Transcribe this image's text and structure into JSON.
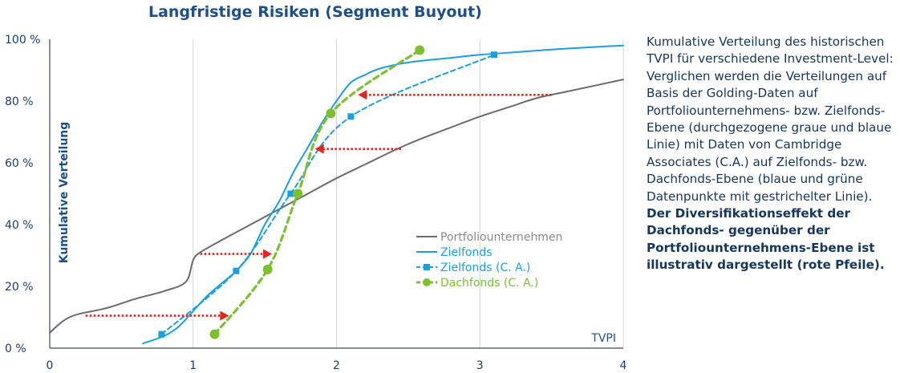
{
  "chart_data": {
    "type": "line",
    "title": "Langfristige Risiken (Segment Buyout)",
    "xlabel": "TVPI",
    "ylabel": "Kumulative Verteilung",
    "xlim": [
      0,
      4
    ],
    "ylim": [
      0,
      100
    ],
    "x_ticks": [
      "0",
      "1",
      "2",
      "3",
      "4"
    ],
    "y_ticks": [
      "0 %",
      "20 %",
      "40 %",
      "60 %",
      "80 %",
      "100 %"
    ],
    "grid": "vertical",
    "legend_position": "center-right",
    "series": [
      {
        "name": "Portfoliounternehmen",
        "style": "solid",
        "color": "#6b6b6b",
        "x": [
          0.0,
          0.1,
          0.2,
          0.4,
          0.6,
          0.8,
          0.95,
          1.0,
          1.05,
          1.2,
          1.4,
          1.6,
          1.8,
          2.0,
          2.2,
          2.4,
          2.6,
          2.8,
          3.0,
          3.2,
          3.4,
          3.6,
          3.8,
          4.0
        ],
        "y": [
          5,
          9,
          11,
          13,
          16,
          18.5,
          21.5,
          28.5,
          31,
          35,
          40,
          45,
          50,
          55,
          59.5,
          64,
          68,
          71.5,
          75,
          78,
          81,
          83,
          85,
          87
        ]
      },
      {
        "name": "Zielfonds",
        "style": "solid",
        "color": "#1a9fe0",
        "x": [
          0.65,
          0.8,
          0.9,
          1.0,
          1.1,
          1.2,
          1.3,
          1.4,
          1.5,
          1.6,
          1.7,
          1.8,
          1.9,
          2.0,
          2.1,
          2.2,
          2.3,
          2.5,
          2.8,
          3.0,
          3.3,
          3.6,
          4.0
        ],
        "y": [
          1.5,
          4,
          7,
          12,
          17,
          21,
          25,
          30.5,
          40,
          47.5,
          57,
          65,
          73,
          80,
          86,
          88.5,
          90.5,
          92.5,
          94,
          95,
          96,
          97,
          98
        ]
      },
      {
        "name": "Zielfonds (C. A.)",
        "style": "dashed-square",
        "color": "#1a9fe0",
        "x": [
          0.78,
          1.3,
          1.68,
          2.1,
          3.1
        ],
        "y": [
          4.5,
          25,
          50,
          75,
          95
        ]
      },
      {
        "name": "Dachfonds (C. A.)",
        "style": "dashed-circle",
        "color": "#7cc02e",
        "x": [
          1.15,
          1.52,
          1.73,
          1.96,
          2.58
        ],
        "y": [
          4.5,
          25.5,
          50,
          76,
          96.5
        ]
      }
    ],
    "annotations": [
      {
        "type": "arrow",
        "color": "#e3241b",
        "from": [
          0.25,
          10.5
        ],
        "to": [
          1.25,
          10.5
        ]
      },
      {
        "type": "arrow",
        "color": "#e3241b",
        "from": [
          1.05,
          30.5
        ],
        "to": [
          1.55,
          30.5
        ]
      },
      {
        "type": "arrow",
        "color": "#e3241b",
        "from": [
          2.45,
          64.5
        ],
        "to": [
          1.85,
          64.5
        ]
      },
      {
        "type": "arrow",
        "color": "#e3241b",
        "from": [
          3.5,
          82
        ],
        "to": [
          2.15,
          82
        ]
      }
    ]
  },
  "caption": {
    "normal": "Kumulative Verteilung des historischen TVPI für verschiedene Investment-Level: Verglichen werden die Verteilungen auf Basis der Golding-Daten auf Portfoliounternehmens- bzw. Zielfonds-Ebene (durchgezogene graue und blaue Linie) mit Daten von Cambridge Associates (C.A.) auf Zielfonds- bzw. Dachfonds-Ebene (blaue und grüne Datenpunkte mit gestrichelter Linie). ",
    "bold": "Der Diversifikationseffekt der Dachfonds- gegenüber der Portfoliounternehmens-Ebene ist illustrativ dargestellt (rote Pfeile)."
  }
}
